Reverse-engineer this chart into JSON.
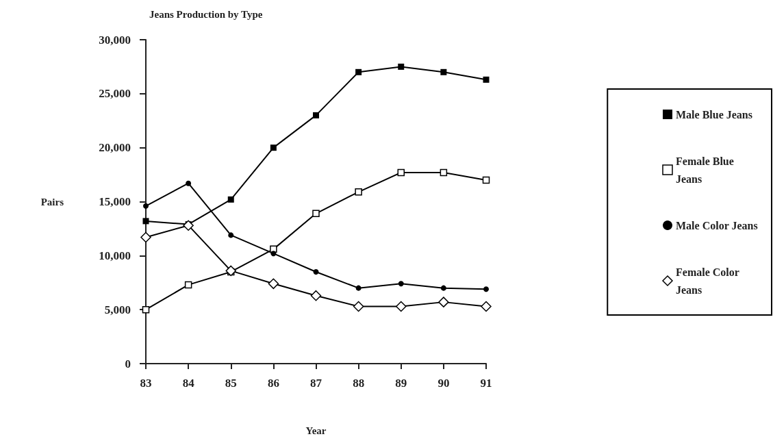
{
  "chart_data": {
    "type": "line",
    "title": "Jeans Production by Type",
    "xlabel": "Year",
    "ylabel": "Pairs",
    "categories": [
      "83",
      "84",
      "85",
      "86",
      "87",
      "88",
      "89",
      "90",
      "91"
    ],
    "series": [
      {
        "name": "Male Blue Jeans",
        "color": "#000000",
        "marker": "square",
        "values": [
          13200,
          12900,
          15200,
          20000,
          23000,
          27000,
          27500,
          27000,
          26300
        ]
      },
      {
        "name": "Female Blue Jeans",
        "color": "#000000",
        "marker": "square",
        "values": [
          5000,
          7300,
          8500,
          10600,
          13900,
          15900,
          17700,
          17700,
          17000
        ]
      },
      {
        "name": "Male Color Jeans",
        "color": "#000000",
        "marker": "circle",
        "values": [
          14600,
          16700,
          11900,
          10200,
          8500,
          7000,
          7400,
          7000,
          6900
        ]
      },
      {
        "name": "Female Color Jeans",
        "color": "#000000",
        "marker": "diamond",
        "values": [
          11700,
          12800,
          8600,
          7400,
          6300,
          5300,
          5300,
          5700,
          5300
        ]
      }
    ],
    "ylim": [
      0,
      30000
    ],
    "yticks": [
      {
        "value": 0,
        "label": "0"
      },
      {
        "value": 5000,
        "label": "5,000"
      },
      {
        "value": 10000,
        "label": "10,000"
      },
      {
        "value": 15000,
        "label": "15,000"
      },
      {
        "value": 20000,
        "label": "20,000"
      },
      {
        "value": 25000,
        "label": "25,000"
      },
      {
        "value": 30000,
        "label": "30,000"
      }
    ],
    "grid": false,
    "legend": "right",
    "line_style": "solid"
  }
}
